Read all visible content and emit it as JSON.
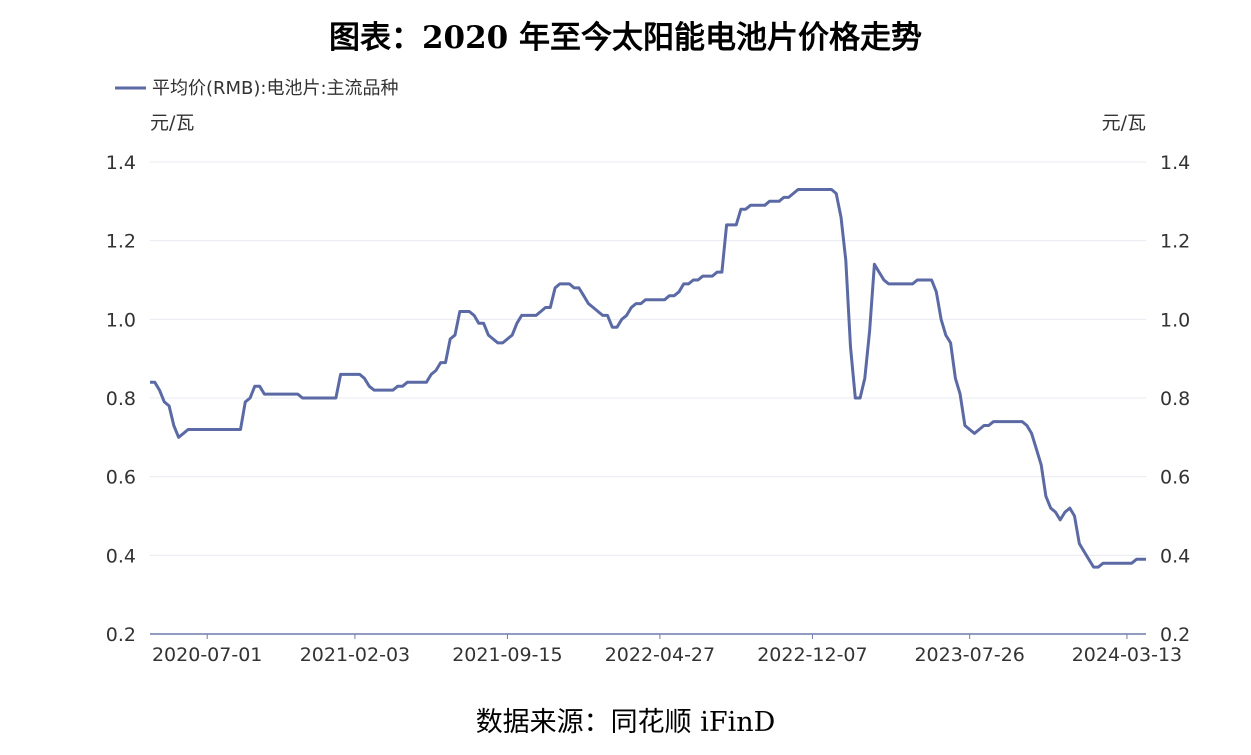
{
  "title": "图表：2020 年至今太阳能电池片价格走势",
  "source": "数据来源：同花顺 iFinD",
  "colors": {
    "series": "#5b6aa5",
    "grid": "#e9ebf2",
    "axis": "#6e7aac"
  },
  "chart_data": {
    "type": "line",
    "title": "图表：2020 年至今太阳能电池片价格走势",
    "y_unit_left": "元/瓦",
    "y_unit_right": "元/瓦",
    "ylim": [
      0.2,
      1.4
    ],
    "yticks": [
      "0.2",
      "0.4",
      "0.6",
      "0.8",
      "1.0",
      "1.2",
      "1.4"
    ],
    "xlim": [
      "2020-04-08",
      "2024-04-10"
    ],
    "xticks": [
      "2020-07-01",
      "2021-02-03",
      "2021-09-15",
      "2022-04-27",
      "2022-12-07",
      "2023-07-26",
      "2024-03-13"
    ],
    "grid": true,
    "legend": "top-left",
    "series": [
      {
        "name": "平均价(RMB):电池片:主流品种",
        "x": [
          "2020-04-08",
          "2020-04-15",
          "2020-04-22",
          "2020-04-29",
          "2020-05-06",
          "2020-05-13",
          "2020-05-20",
          "2020-05-27",
          "2020-06-03",
          "2020-06-10",
          "2020-06-17",
          "2020-06-24",
          "2020-07-01",
          "2020-07-08",
          "2020-07-15",
          "2020-07-22",
          "2020-07-29",
          "2020-08-05",
          "2020-08-12",
          "2020-08-19",
          "2020-08-26",
          "2020-09-02",
          "2020-09-09",
          "2020-09-16",
          "2020-09-23",
          "2020-09-30",
          "2020-10-07",
          "2020-10-14",
          "2020-10-21",
          "2020-10-28",
          "2020-11-04",
          "2020-11-11",
          "2020-11-18",
          "2020-11-25",
          "2020-12-02",
          "2020-12-09",
          "2020-12-16",
          "2020-12-23",
          "2020-12-30",
          "2021-01-06",
          "2021-01-13",
          "2021-01-20",
          "2021-01-27",
          "2021-02-03",
          "2021-02-10",
          "2021-02-17",
          "2021-02-24",
          "2021-03-03",
          "2021-03-10",
          "2021-03-17",
          "2021-03-24",
          "2021-03-31",
          "2021-04-07",
          "2021-04-14",
          "2021-04-21",
          "2021-04-28",
          "2021-05-05",
          "2021-05-12",
          "2021-05-19",
          "2021-05-26",
          "2021-06-02",
          "2021-06-09",
          "2021-06-16",
          "2021-06-23",
          "2021-06-30",
          "2021-07-07",
          "2021-07-14",
          "2021-07-21",
          "2021-07-28",
          "2021-08-04",
          "2021-08-11",
          "2021-08-18",
          "2021-08-25",
          "2021-09-01",
          "2021-09-08",
          "2021-09-15",
          "2021-09-22",
          "2021-09-29",
          "2021-10-06",
          "2021-10-13",
          "2021-10-20",
          "2021-10-27",
          "2021-11-03",
          "2021-11-10",
          "2021-11-17",
          "2021-11-24",
          "2021-12-01",
          "2021-12-08",
          "2021-12-15",
          "2021-12-22",
          "2021-12-29",
          "2022-01-05",
          "2022-01-12",
          "2022-01-19",
          "2022-01-26",
          "2022-02-02",
          "2022-02-09",
          "2022-02-16",
          "2022-02-23",
          "2022-03-02",
          "2022-03-09",
          "2022-03-16",
          "2022-03-23",
          "2022-03-30",
          "2022-04-06",
          "2022-04-13",
          "2022-04-20",
          "2022-04-27",
          "2022-05-04",
          "2022-05-11",
          "2022-05-18",
          "2022-05-25",
          "2022-06-01",
          "2022-06-08",
          "2022-06-15",
          "2022-06-22",
          "2022-06-29",
          "2022-07-06",
          "2022-07-13",
          "2022-07-20",
          "2022-07-27",
          "2022-08-03",
          "2022-08-10",
          "2022-08-17",
          "2022-08-24",
          "2022-08-31",
          "2022-09-07",
          "2022-09-14",
          "2022-09-21",
          "2022-09-28",
          "2022-10-05",
          "2022-10-12",
          "2022-10-19",
          "2022-10-26",
          "2022-11-02",
          "2022-11-09",
          "2022-11-16",
          "2022-11-23",
          "2022-11-30",
          "2022-12-07",
          "2022-12-14",
          "2022-12-21",
          "2022-12-28",
          "2023-01-04",
          "2023-01-11",
          "2023-01-18",
          "2023-01-25",
          "2023-02-01",
          "2023-02-08",
          "2023-02-15",
          "2023-02-22",
          "2023-03-01",
          "2023-03-08",
          "2023-03-15",
          "2023-03-22",
          "2023-03-29",
          "2023-04-05",
          "2023-04-12",
          "2023-04-19",
          "2023-04-26",
          "2023-05-03",
          "2023-05-10",
          "2023-05-17",
          "2023-05-24",
          "2023-05-31",
          "2023-06-07",
          "2023-06-14",
          "2023-06-21",
          "2023-06-28",
          "2023-07-05",
          "2023-07-12",
          "2023-07-19",
          "2023-07-26",
          "2023-08-02",
          "2023-08-09",
          "2023-08-16",
          "2023-08-23",
          "2023-08-30",
          "2023-09-06",
          "2023-09-13",
          "2023-09-20",
          "2023-09-27",
          "2023-10-04",
          "2023-10-11",
          "2023-10-18",
          "2023-10-25",
          "2023-11-01",
          "2023-11-08",
          "2023-11-15",
          "2023-11-22",
          "2023-11-29",
          "2023-12-06",
          "2023-12-13",
          "2023-12-20",
          "2023-12-27",
          "2024-01-03",
          "2024-01-10",
          "2024-01-17",
          "2024-01-24",
          "2024-01-31",
          "2024-02-07",
          "2024-02-14",
          "2024-02-21",
          "2024-02-28",
          "2024-03-06",
          "2024-03-13",
          "2024-03-20",
          "2024-03-27",
          "2024-04-03",
          "2024-04-10"
        ],
        "values": [
          0.84,
          0.84,
          0.82,
          0.79,
          0.78,
          0.73,
          0.7,
          0.71,
          0.72,
          0.72,
          0.72,
          0.72,
          0.72,
          0.72,
          0.72,
          0.72,
          0.72,
          0.72,
          0.72,
          0.72,
          0.79,
          0.8,
          0.83,
          0.83,
          0.81,
          0.81,
          0.81,
          0.81,
          0.81,
          0.81,
          0.81,
          0.81,
          0.8,
          0.8,
          0.8,
          0.8,
          0.8,
          0.8,
          0.8,
          0.8,
          0.86,
          0.86,
          0.86,
          0.86,
          0.86,
          0.85,
          0.83,
          0.82,
          0.82,
          0.82,
          0.82,
          0.82,
          0.83,
          0.83,
          0.84,
          0.84,
          0.84,
          0.84,
          0.84,
          0.86,
          0.87,
          0.89,
          0.89,
          0.95,
          0.96,
          1.02,
          1.02,
          1.02,
          1.01,
          0.99,
          0.99,
          0.96,
          0.95,
          0.94,
          0.94,
          0.95,
          0.96,
          0.99,
          1.01,
          1.01,
          1.01,
          1.01,
          1.02,
          1.03,
          1.03,
          1.08,
          1.09,
          1.09,
          1.09,
          1.08,
          1.08,
          1.06,
          1.04,
          1.03,
          1.02,
          1.01,
          1.01,
          0.98,
          0.98,
          1.0,
          1.01,
          1.03,
          1.04,
          1.04,
          1.05,
          1.05,
          1.05,
          1.05,
          1.05,
          1.06,
          1.06,
          1.07,
          1.09,
          1.09,
          1.1,
          1.1,
          1.11,
          1.11,
          1.11,
          1.12,
          1.12,
          1.24,
          1.24,
          1.24,
          1.28,
          1.28,
          1.29,
          1.29,
          1.29,
          1.29,
          1.3,
          1.3,
          1.3,
          1.31,
          1.31,
          1.32,
          1.33,
          1.33,
          1.33,
          1.33,
          1.33,
          1.33,
          1.33,
          1.33,
          1.32,
          1.26,
          1.15,
          0.93,
          0.8,
          0.8,
          0.85,
          0.97,
          1.14,
          1.12,
          1.1,
          1.09,
          1.09,
          1.09,
          1.09,
          1.09,
          1.09,
          1.1,
          1.1,
          1.1,
          1.1,
          1.07,
          1.0,
          0.96,
          0.94,
          0.85,
          0.81,
          0.73,
          0.72,
          0.71,
          0.72,
          0.73,
          0.73,
          0.74,
          0.74,
          0.74,
          0.74,
          0.74,
          0.74,
          0.74,
          0.73,
          0.71,
          0.67,
          0.63,
          0.55,
          0.52,
          0.51,
          0.49,
          0.51,
          0.52,
          0.5,
          0.43,
          0.41,
          0.39,
          0.37,
          0.37,
          0.38,
          0.38,
          0.38,
          0.38,
          0.38,
          0.38,
          0.38,
          0.39,
          0.39,
          0.39
        ]
      }
    ]
  }
}
